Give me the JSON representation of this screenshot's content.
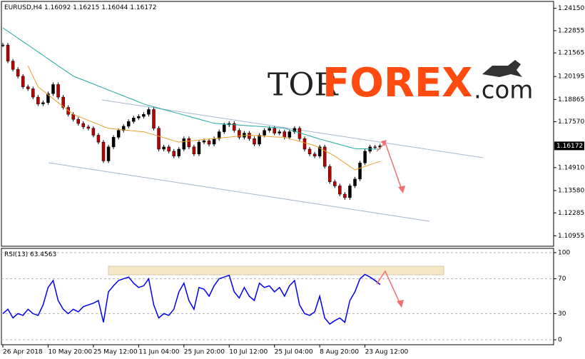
{
  "chart_data": [
    {
      "type": "candlestick",
      "symbol": "EURUSD,H4",
      "last_bar": [
        1.16092,
        1.16215,
        1.16044
      ],
      "logo": {
        "prefix": "TOR",
        "brand": "FOREX",
        "suffix": ".com"
      },
      "categories": [
        "26 Apr 2018",
        null,
        null,
        null,
        null,
        null,
        null,
        null,
        null,
        "10 May 20:00",
        null,
        null,
        null,
        null,
        null,
        null,
        null,
        null,
        "25 May 12:00",
        null,
        null,
        null,
        null,
        null,
        null,
        null,
        null,
        "11 Jun 04:00",
        null,
        null,
        null,
        null,
        null,
        null,
        null,
        null,
        "25 Jun 20:00",
        null,
        null,
        null,
        null,
        null,
        null,
        null,
        null,
        "10 Jul 12:00",
        null,
        null,
        null,
        null,
        null,
        null,
        null,
        null,
        "25 Jul 04:00",
        null,
        null,
        null,
        null,
        null,
        null,
        null,
        null,
        "8 Aug 20:00",
        null,
        null,
        null,
        null,
        null,
        null,
        null,
        null,
        "23 Aug 12:00",
        null,
        null,
        null
      ],
      "series": [
        {
          "type": "candlestick",
          "up_color": "#000000",
          "down_color": "#c00000",
          "values": [
            1.2202,
            1.2109,
            1.2061,
            1.2021,
            1.196,
            1.1948,
            1.19,
            1.186,
            1.1868,
            1.192,
            1.1973,
            1.19,
            1.184,
            1.18,
            1.1771,
            1.1747,
            1.1727,
            1.1719,
            1.1679,
            1.1639,
            1.153,
            1.1611,
            1.1667,
            1.1707,
            1.1731,
            1.1759,
            1.1779,
            1.1788,
            1.18,
            1.1828,
            1.1719,
            1.1598,
            1.1611,
            1.1586,
            1.1558,
            1.1598,
            1.1659,
            1.1611,
            1.157,
            1.1639,
            1.1647,
            1.1627,
            1.1659,
            1.1699,
            1.1739,
            1.1747,
            1.1707,
            1.1667,
            1.1691,
            1.1659,
            1.1627,
            1.1679,
            1.1707,
            1.1719,
            1.1691,
            1.1699,
            1.1667,
            1.1699,
            1.1719,
            1.1659,
            1.1598,
            1.157,
            1.1558,
            1.1611,
            1.1498,
            1.1409,
            1.1385,
            1.1337,
            1.1317,
            1.1385,
            1.1425,
            1.1518,
            1.1586,
            1.1611,
            1.16092,
            1.16172
          ]
        },
        {
          "type": "line",
          "color": "#20a8a0",
          "values": [
            1.2302,
            1.2282,
            1.2262,
            1.2242,
            1.2222,
            1.2202,
            1.2182,
            1.2162,
            1.2142,
            1.2122,
            1.2102,
            1.2082,
            1.2062,
            1.2042,
            1.2022,
            1.201,
            1.1999,
            1.1987,
            1.1976,
            1.1964,
            1.1953,
            1.1941,
            1.193,
            1.1918,
            1.1907,
            1.1895,
            1.1884,
            1.1872,
            1.186,
            1.1852,
            1.1844,
            1.1836,
            1.1828,
            1.182,
            1.1812,
            1.1804,
            1.1796,
            1.1788,
            1.178,
            1.1772,
            1.1764,
            1.1756,
            1.1748,
            1.1746,
            1.1744,
            1.1742,
            1.174,
            1.1738,
            1.1736,
            1.1734,
            1.1732,
            1.173,
            1.1728,
            1.1726,
            1.1724,
            1.1722,
            1.172,
            1.1711,
            1.1702,
            1.1693,
            1.1684,
            1.1675,
            1.1666,
            1.1657,
            1.1649,
            1.1641,
            1.1633,
            1.1625,
            1.1617,
            1.1609,
            1.1601,
            1.16,
            1.16,
            1.1599,
            1.1599,
            1.1598
          ]
        },
        {
          "type": "line",
          "color": "#e8a030",
          "values": [
            null,
            null,
            null,
            null,
            null,
            1.2081,
            1.202,
            1.196,
            1.1937,
            1.1914,
            1.1891,
            1.1868,
            1.1846,
            1.1823,
            1.18,
            1.1788,
            1.1777,
            1.1765,
            1.1754,
            1.1742,
            1.173,
            1.1719,
            1.1716,
            1.1713,
            1.171,
            1.1707,
            1.1704,
            1.1701,
            1.1699,
            1.169,
            1.1682,
            1.1673,
            1.1665,
            1.1656,
            1.1647,
            1.1639,
            1.1642,
            1.1645,
            1.1648,
            1.1651,
            1.1654,
            1.1657,
            1.1659,
            1.1662,
            1.1665,
            1.1668,
            1.1671,
            1.1674,
            1.1677,
            1.1679,
            1.1677,
            1.1675,
            1.1673,
            1.1671,
            1.1669,
            1.1668,
            1.1667,
            1.1659,
            1.1651,
            1.1643,
            1.1635,
            1.1627,
            1.1619,
            1.1604,
            1.1589,
            1.1574,
            1.1558,
            1.1538,
            1.1518,
            1.1498,
            1.1478,
            1.1488,
            1.1498,
            1.1508,
            1.1518,
            1.1527
          ]
        }
      ],
      "ylim": [
        1.1035,
        1.2455
      ],
      "yticks": [
        {
          "value": 1.2415,
          "label": "1.24150"
        },
        1.22855,
        1.21565,
        1.20195,
        1.18865,
        {
          "value": 1.1757,
          "label": "1.17570"
        },
        {
          "value": 1.1491,
          "label": "1.14910"
        },
        {
          "value": 1.1358,
          "label": "1.13580"
        },
        1.12285,
        1.10955
      ]
    },
    {
      "type": "line",
      "title": "RSI(13)",
      "color": "#0000ee",
      "values": [
        30,
        35,
        25,
        30,
        28,
        35,
        30,
        28,
        40,
        60,
        68,
        45,
        35,
        30,
        35,
        32,
        38,
        40,
        42,
        45,
        20,
        55,
        62,
        68,
        70,
        72,
        65,
        60,
        62,
        70,
        40,
        25,
        30,
        28,
        35,
        55,
        65,
        45,
        35,
        60,
        58,
        50,
        62,
        70,
        72,
        74,
        55,
        48,
        60,
        50,
        45,
        65,
        60,
        62,
        55,
        60,
        50,
        62,
        68,
        40,
        30,
        28,
        32,
        50,
        25,
        18,
        22,
        25,
        20,
        45,
        55,
        70,
        75,
        72,
        68,
        63.4563
      ],
      "ylim": [
        -5.7,
        104.9
      ],
      "yticks": [
        100,
        70,
        30,
        0
      ]
    }
  ]
}
